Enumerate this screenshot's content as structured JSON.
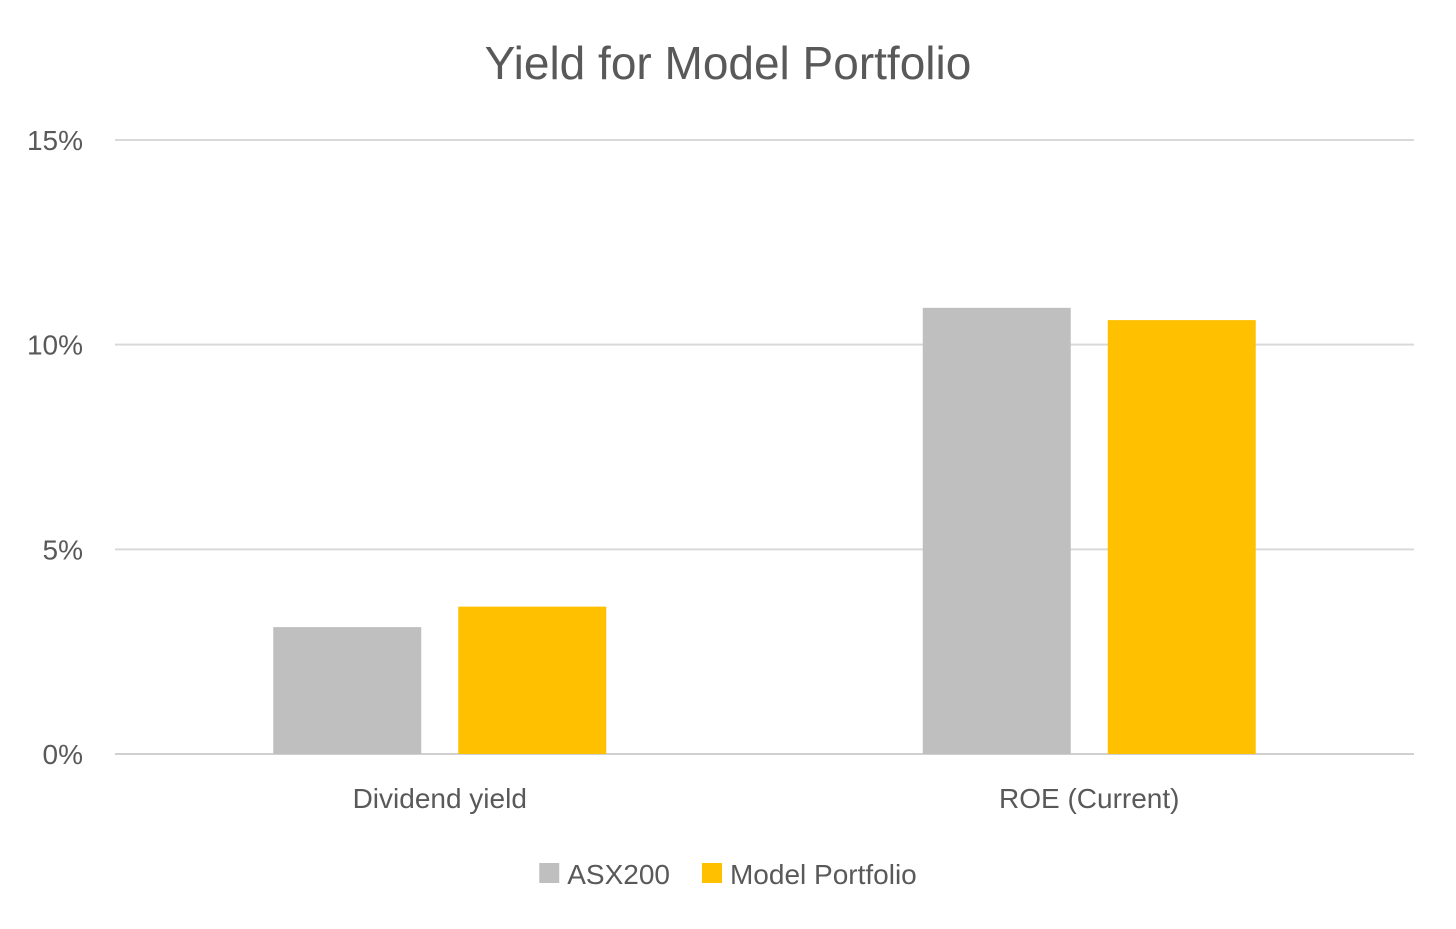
{
  "chart_data": {
    "type": "bar",
    "title": "Yield for Model Portfolio",
    "xlabel": "",
    "ylabel": "",
    "categories": [
      "Dividend yield",
      "ROE (Current)"
    ],
    "series": [
      {
        "name": "ASX200",
        "color": "#bfbfbf",
        "values": [
          3.1,
          10.9
        ]
      },
      {
        "name": "Model Portfolio",
        "color": "#ffc000",
        "values": [
          3.6,
          10.6
        ]
      }
    ],
    "ylim": [
      0,
      15
    ],
    "yticks": [
      0,
      5,
      10,
      15
    ],
    "ytick_labels": [
      "0%",
      "5%",
      "10%",
      "15%"
    ],
    "grid": true,
    "legend_position": "bottom"
  }
}
